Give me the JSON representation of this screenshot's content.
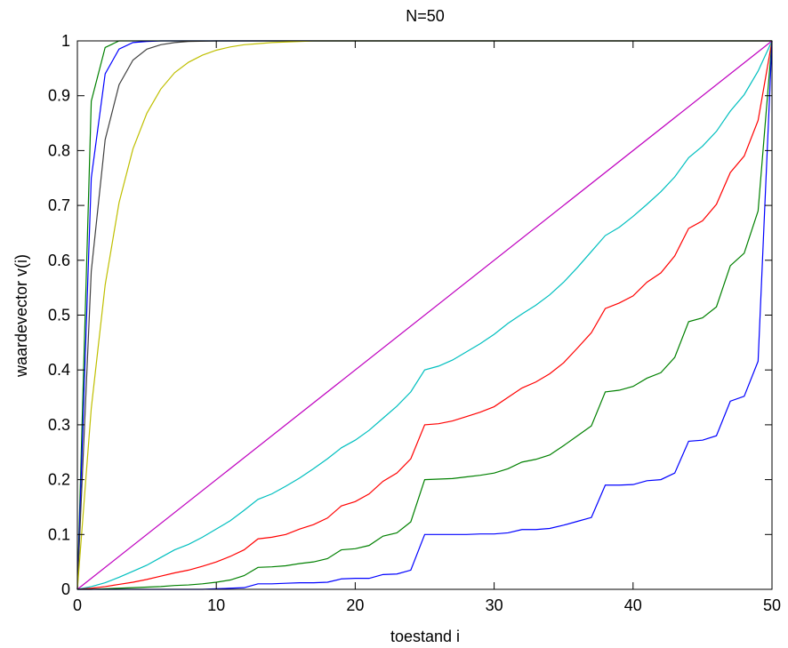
{
  "chart_data": {
    "type": "line",
    "title": "N=50",
    "xlabel": "toestand i",
    "ylabel": "waardevector v(i)",
    "xlim": [
      0,
      50
    ],
    "ylim": [
      0,
      1
    ],
    "xticks": [
      0,
      10,
      20,
      30,
      40,
      50
    ],
    "yticks": [
      0,
      0.1,
      0.2,
      0.3,
      0.4,
      0.5,
      0.6,
      0.7,
      0.8,
      0.9,
      1
    ],
    "ytick_labels": [
      "0",
      "0.1",
      "0.2",
      "0.3",
      "0.4",
      "0.5",
      "0.6",
      "0.7",
      "0.8",
      "0.9",
      "1"
    ],
    "grid": false,
    "series": [
      {
        "color": "#008000",
        "x": [
          0,
          1,
          2,
          3,
          4,
          5,
          6,
          8,
          10,
          15,
          20,
          30,
          40,
          50
        ],
        "y": [
          0,
          0.89,
          0.988,
          1.0,
          1,
          1,
          1,
          1,
          1,
          1,
          1,
          1,
          1,
          1
        ]
      },
      {
        "color": "#0000ff",
        "x": [
          0,
          1,
          2,
          3,
          4,
          5,
          6,
          8,
          10,
          15,
          20,
          30,
          40,
          50
        ],
        "y": [
          0,
          0.75,
          0.94,
          0.985,
          0.997,
          0.999,
          1,
          1,
          1,
          1,
          1,
          1,
          1,
          1
        ]
      },
      {
        "color": "#404040",
        "x": [
          0,
          1,
          2,
          3,
          4,
          5,
          6,
          7,
          8,
          10,
          12,
          15,
          20,
          30,
          40,
          50
        ],
        "y": [
          0,
          0.58,
          0.82,
          0.92,
          0.965,
          0.985,
          0.993,
          0.997,
          0.999,
          1,
          1,
          1,
          1,
          1,
          1,
          1
        ]
      },
      {
        "color": "#bfbf00",
        "x": [
          0,
          1,
          2,
          3,
          4,
          5,
          6,
          7,
          8,
          9,
          10,
          11,
          12,
          13,
          14,
          15,
          16,
          17,
          20,
          30,
          40,
          50
        ],
        "y": [
          0,
          0.33,
          0.555,
          0.705,
          0.803,
          0.868,
          0.912,
          0.942,
          0.961,
          0.974,
          0.983,
          0.989,
          0.993,
          0.995,
          0.997,
          0.998,
          0.999,
          1,
          1,
          1,
          1,
          1
        ]
      },
      {
        "color": "#bf00bf",
        "x": [
          0,
          50
        ],
        "y": [
          0,
          1
        ]
      },
      {
        "color": "#00bfbf",
        "x": [
          0,
          1,
          2,
          3,
          4,
          5,
          6,
          7,
          8,
          9,
          10,
          11,
          12,
          13,
          14,
          15,
          16,
          17,
          18,
          19,
          20,
          21,
          22,
          23,
          24,
          25,
          26,
          27,
          28,
          29,
          30,
          31,
          32,
          33,
          34,
          35,
          36,
          37,
          38,
          39,
          40,
          41,
          42,
          43,
          44,
          45,
          46,
          47,
          48,
          49,
          50
        ],
        "y": [
          0,
          0.005,
          0.012,
          0.022,
          0.033,
          0.044,
          0.058,
          0.072,
          0.082,
          0.095,
          0.11,
          0.125,
          0.144,
          0.164,
          0.174,
          0.188,
          0.203,
          0.22,
          0.238,
          0.258,
          0.272,
          0.29,
          0.312,
          0.334,
          0.36,
          0.4,
          0.407,
          0.418,
          0.433,
          0.448,
          0.465,
          0.485,
          0.502,
          0.518,
          0.537,
          0.56,
          0.587,
          0.616,
          0.645,
          0.66,
          0.68,
          0.702,
          0.725,
          0.752,
          0.787,
          0.808,
          0.835,
          0.872,
          0.902,
          0.945,
          1.0
        ]
      },
      {
        "color": "#ff0000",
        "x": [
          0,
          1,
          2,
          3,
          4,
          5,
          6,
          7,
          8,
          9,
          10,
          11,
          12,
          13,
          14,
          15,
          16,
          17,
          18,
          19,
          20,
          21,
          22,
          23,
          24,
          25,
          26,
          27,
          28,
          29,
          30,
          31,
          32,
          33,
          34,
          35,
          36,
          37,
          38,
          39,
          40,
          41,
          42,
          43,
          44,
          45,
          46,
          47,
          48,
          49,
          50
        ],
        "y": [
          0,
          0.002,
          0.005,
          0.009,
          0.013,
          0.018,
          0.024,
          0.03,
          0.035,
          0.042,
          0.05,
          0.06,
          0.072,
          0.092,
          0.095,
          0.1,
          0.11,
          0.118,
          0.13,
          0.152,
          0.16,
          0.174,
          0.197,
          0.212,
          0.238,
          0.3,
          0.302,
          0.307,
          0.315,
          0.323,
          0.333,
          0.35,
          0.367,
          0.378,
          0.393,
          0.413,
          0.44,
          0.468,
          0.512,
          0.522,
          0.535,
          0.56,
          0.577,
          0.608,
          0.658,
          0.672,
          0.702,
          0.76,
          0.79,
          0.855,
          1.0
        ]
      },
      {
        "color": "#008000",
        "x": [
          0,
          1,
          2,
          3,
          4,
          5,
          6,
          7,
          8,
          9,
          10,
          11,
          12,
          13,
          14,
          15,
          16,
          17,
          18,
          19,
          20,
          21,
          22,
          23,
          24,
          25,
          26,
          27,
          28,
          29,
          30,
          31,
          32,
          33,
          34,
          35,
          36,
          37,
          38,
          39,
          40,
          41,
          42,
          43,
          44,
          45,
          46,
          47,
          48,
          49,
          50
        ],
        "y": [
          0,
          0,
          0.001,
          0.002,
          0.003,
          0.004,
          0.005,
          0.007,
          0.008,
          0.01,
          0.013,
          0.017,
          0.025,
          0.04,
          0.041,
          0.043,
          0.047,
          0.05,
          0.056,
          0.072,
          0.074,
          0.08,
          0.097,
          0.103,
          0.123,
          0.2,
          0.201,
          0.202,
          0.205,
          0.208,
          0.212,
          0.22,
          0.232,
          0.237,
          0.245,
          0.262,
          0.28,
          0.298,
          0.36,
          0.363,
          0.37,
          0.385,
          0.395,
          0.423,
          0.488,
          0.495,
          0.515,
          0.59,
          0.613,
          0.69,
          1.0
        ]
      },
      {
        "color": "#0000ff",
        "x": [
          0,
          1,
          2,
          3,
          4,
          5,
          6,
          7,
          8,
          9,
          10,
          11,
          12,
          13,
          14,
          15,
          16,
          17,
          18,
          19,
          20,
          21,
          22,
          23,
          24,
          25,
          26,
          27,
          28,
          29,
          30,
          31,
          32,
          33,
          34,
          35,
          36,
          37,
          38,
          39,
          40,
          41,
          42,
          43,
          44,
          45,
          46,
          47,
          48,
          49,
          50
        ],
        "y": [
          0,
          0,
          0,
          0,
          0,
          0,
          0,
          0,
          0,
          0,
          0.001,
          0.002,
          0.003,
          0.01,
          0.01,
          0.011,
          0.012,
          0.012,
          0.013,
          0.019,
          0.02,
          0.02,
          0.027,
          0.028,
          0.035,
          0.1,
          0.1,
          0.1,
          0.1,
          0.101,
          0.101,
          0.103,
          0.109,
          0.109,
          0.111,
          0.117,
          0.124,
          0.131,
          0.19,
          0.19,
          0.191,
          0.198,
          0.2,
          0.212,
          0.27,
          0.272,
          0.28,
          0.343,
          0.352,
          0.416,
          1.0
        ]
      }
    ]
  }
}
